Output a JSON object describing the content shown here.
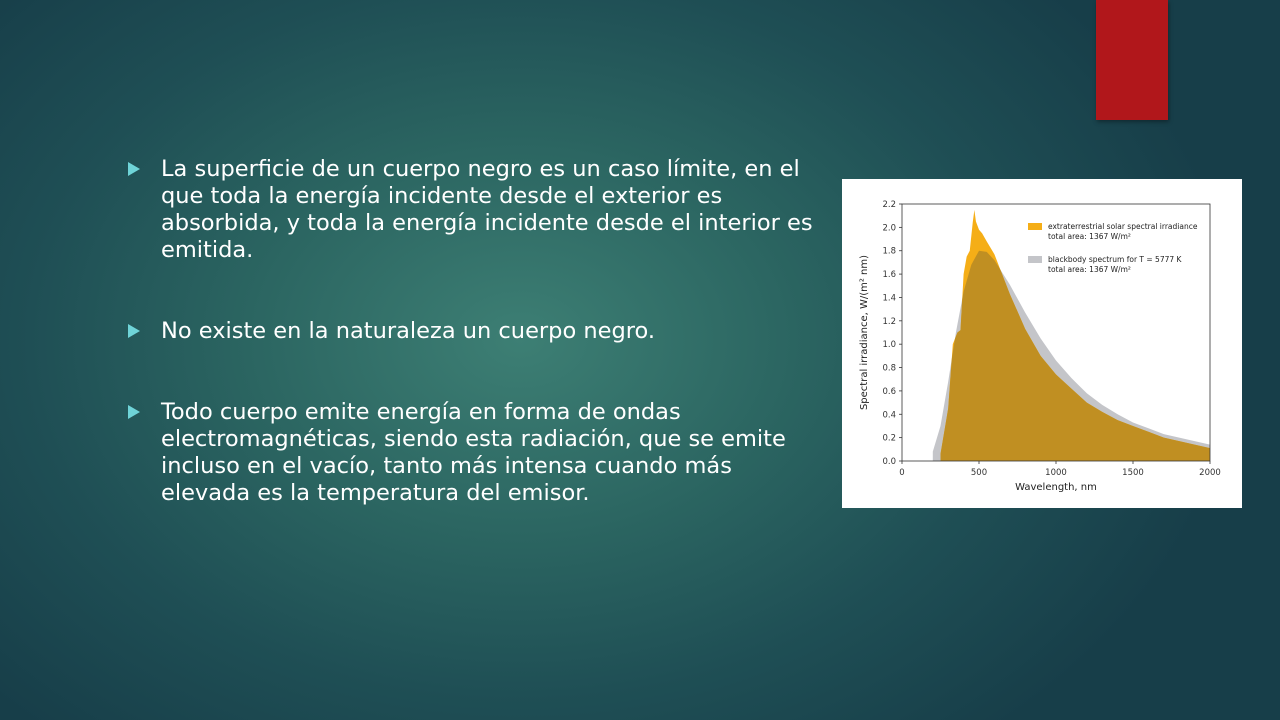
{
  "slide": {
    "bullets": [
      "La superficie de un cuerpo negro es un caso límite, en el que toda la energía incidente desde el exterior es absorbida, y toda la energía incidente desde el interior es emitida.",
      "No existe en la naturaleza un cuerpo negro.",
      "Todo cuerpo emite energía en forma de ondas electromagnéticas, siendo esta radiación, que se emite incluso en el vacío, tanto más intensa cuando más elevada es la temperatura del emisor."
    ]
  },
  "colors": {
    "accent_bar": "#b1171b",
    "bullet_marker": "#6fd4d8",
    "solar": "#f5ae17",
    "solar_overlap": "#c08f22",
    "blackbody": "#c4c5c9"
  },
  "chart_data": {
    "type": "area",
    "xlabel": "Wavelength, nm",
    "ylabel": "Spectral irradiance, W/(m² nm)",
    "xlim": [
      0,
      2000
    ],
    "ylim": [
      0,
      2.2
    ],
    "x_ticks": [
      0,
      500,
      1000,
      1500,
      2000
    ],
    "y_ticks": [
      "0.0",
      "0.2",
      "0.4",
      "0.6",
      "0.8",
      "1.0",
      "1.2",
      "1.4",
      "1.6",
      "1.8",
      "2.0",
      "2.2"
    ],
    "legend_position": "top-right",
    "grid": false,
    "series": [
      {
        "name": "extraterrestrial solar spectral irradiance",
        "sub": "total area: 1367 W/m²",
        "color": "#f5ae17",
        "x": [
          250,
          300,
          330,
          360,
          380,
          400,
          420,
          440,
          460,
          470,
          480,
          500,
          520,
          550,
          600,
          650,
          700,
          800,
          900,
          1000,
          1100,
          1200,
          1300,
          1400,
          1500,
          1600,
          1700,
          1800,
          1900,
          2000
        ],
        "y": [
          0.06,
          0.45,
          1.0,
          1.1,
          1.12,
          1.6,
          1.75,
          1.8,
          2.05,
          2.15,
          2.05,
          1.98,
          1.95,
          1.88,
          1.77,
          1.6,
          1.43,
          1.13,
          0.9,
          0.74,
          0.62,
          0.5,
          0.42,
          0.35,
          0.3,
          0.25,
          0.2,
          0.17,
          0.14,
          0.11
        ]
      },
      {
        "name": "blackbody spectrum for T = 5777 K",
        "sub": "total area: 1367 W/m²",
        "color": "#c4c5c9",
        "x": [
          200,
          250,
          300,
          350,
          400,
          450,
          500,
          550,
          600,
          700,
          800,
          900,
          1000,
          1100,
          1200,
          1300,
          1400,
          1500,
          1600,
          1700,
          1800,
          1900,
          2000
        ],
        "y": [
          0.08,
          0.3,
          0.68,
          1.1,
          1.45,
          1.68,
          1.8,
          1.79,
          1.72,
          1.51,
          1.27,
          1.05,
          0.86,
          0.71,
          0.58,
          0.48,
          0.4,
          0.33,
          0.28,
          0.23,
          0.2,
          0.17,
          0.14
        ]
      }
    ]
  }
}
